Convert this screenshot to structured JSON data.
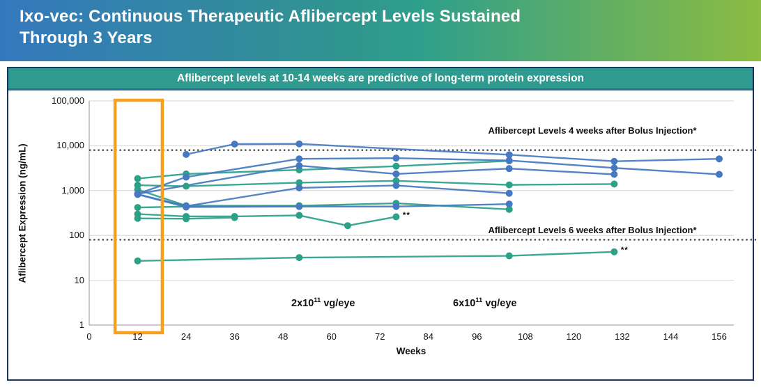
{
  "banner": {
    "title_line1": "Ixo-vec: Continuous Therapeutic Aflibercept Levels Sustained",
    "title_line2": "Through 3 Years"
  },
  "panel": {
    "header": "Aflibercept levels at 10-14 weeks are predictive of long-term protein expression"
  },
  "chart_data": {
    "type": "line",
    "title": "Aflibercept levels at 10-14 weeks are predictive of long-term protein expression",
    "xlabel": "Weeks",
    "ylabel": "Aflibercept Expression (ng/mL)",
    "y_scale": "log",
    "ylim": [
      1,
      100000
    ],
    "xlim": [
      0,
      160
    ],
    "grid": "horizontal-only",
    "x_ticks": [
      0,
      12,
      24,
      36,
      48,
      60,
      72,
      84,
      96,
      108,
      120,
      132,
      144,
      156
    ],
    "y_tick_labels": [
      "100,000",
      "10,000",
      "1,000",
      "100",
      "10",
      "1"
    ],
    "y_tick_values": [
      100000,
      10000,
      1000,
      100,
      10,
      1
    ],
    "reference_lines": [
      {
        "value": 8000,
        "label": "Aflibercept Levels 4 weeks after Bolus Injection*"
      },
      {
        "value": 80,
        "label": "Aflibercept Levels 6 weeks after Bolus Injection*"
      }
    ],
    "highlight_region": {
      "x_start_week": 6.4,
      "x_end_week": 18.1,
      "color": "#F7A01D",
      "meaning": "10-14 week sampling window"
    },
    "groups": {
      "green": {
        "dose": "2x10^11 vg/eye",
        "color": "#2BA188"
      },
      "blue": {
        "dose": "6x10^11 vg/eye",
        "color": "#4679C0"
      }
    },
    "series": [
      {
        "id": "green-1",
        "group": "green",
        "points": [
          [
            12,
            1850
          ],
          [
            24,
            2350
          ],
          [
            52,
            2900
          ],
          [
            76,
            3500
          ],
          [
            104,
            4600
          ]
        ]
      },
      {
        "id": "green-2",
        "group": "green",
        "points": [
          [
            12,
            1320
          ],
          [
            24,
            1250
          ],
          [
            52,
            1500
          ],
          [
            76,
            1650
          ],
          [
            104,
            1340
          ],
          [
            130,
            1400
          ]
        ]
      },
      {
        "id": "green-3",
        "group": "green",
        "points": [
          [
            12,
            1050
          ],
          [
            24,
            460
          ],
          [
            52,
            460
          ],
          [
            76,
            520
          ],
          [
            104,
            380
          ]
        ]
      },
      {
        "id": "green-4",
        "group": "green",
        "points": [
          [
            12,
            420
          ],
          [
            24,
            440
          ],
          [
            52,
            450
          ]
        ]
      },
      {
        "id": "green-5",
        "group": "green",
        "points": [
          [
            12,
            300
          ],
          [
            24,
            265
          ],
          [
            36,
            265
          ],
          [
            52,
            280
          ],
          [
            64,
            165
          ],
          [
            76,
            260
          ]
        ],
        "end_annotation": "**"
      },
      {
        "id": "green-6",
        "group": "green",
        "points": [
          [
            12,
            27
          ],
          [
            52,
            32
          ],
          [
            104,
            35
          ],
          [
            130,
            43
          ]
        ],
        "end_annotation": "**"
      },
      {
        "id": "green-7",
        "group": "green",
        "points": [
          [
            12,
            240
          ],
          [
            24,
            235
          ],
          [
            36,
            250
          ]
        ]
      },
      {
        "id": "blue-1",
        "group": "blue",
        "points": [
          [
            24,
            6400
          ],
          [
            36,
            10900
          ],
          [
            52,
            11000
          ],
          [
            104,
            6300
          ],
          [
            130,
            4500
          ],
          [
            156,
            5100
          ]
        ]
      },
      {
        "id": "blue-2",
        "group": "blue",
        "points": [
          [
            12,
            850
          ],
          [
            24,
            2000
          ],
          [
            52,
            5100
          ],
          [
            76,
            5300
          ],
          [
            104,
            4700
          ],
          [
            130,
            3200
          ],
          [
            156,
            2300
          ]
        ]
      },
      {
        "id": "blue-3",
        "group": "blue",
        "points": [
          [
            12,
            840
          ],
          [
            52,
            3600
          ],
          [
            76,
            2350
          ],
          [
            104,
            3100
          ],
          [
            130,
            2300
          ]
        ]
      },
      {
        "id": "blue-4",
        "group": "blue",
        "points": [
          [
            12,
            830
          ],
          [
            24,
            450
          ],
          [
            52,
            1150
          ],
          [
            76,
            1300
          ],
          [
            104,
            870
          ]
        ]
      },
      {
        "id": "blue-5",
        "group": "blue",
        "points": [
          [
            12,
            820
          ],
          [
            24,
            430
          ],
          [
            52,
            440
          ],
          [
            76,
            440
          ],
          [
            104,
            500
          ]
        ]
      }
    ],
    "annotations": [
      {
        "text": "**",
        "week": 78.5,
        "value": 255
      },
      {
        "text": "**",
        "week": 132.5,
        "value": 42
      }
    ],
    "legend": [
      {
        "prefix": "2x10",
        "exponent": "11",
        "suffix": " vg/eye",
        "color": "#2BA188"
      },
      {
        "prefix": "6x10",
        "exponent": "11",
        "suffix": " vg/eye",
        "color": "#4679C0"
      }
    ],
    "legend_position": "bottom-center-inside"
  },
  "colors": {
    "banner_gradient_left": "#3478BD",
    "banner_gradient_mid": "#2E9F8C",
    "banner_gradient_right": "#8CBC41",
    "panel_border": "#16365D",
    "panel_header_bg": "#2F9A8F",
    "panel_header_border": "#2F6E93",
    "gridline": "#D4D4D4",
    "axis_line": "#ABABAB",
    "reference_line": "#4A4A4A",
    "highlight": "#F7A01D",
    "series_green": "#2BA188",
    "series_blue": "#4679C0"
  }
}
